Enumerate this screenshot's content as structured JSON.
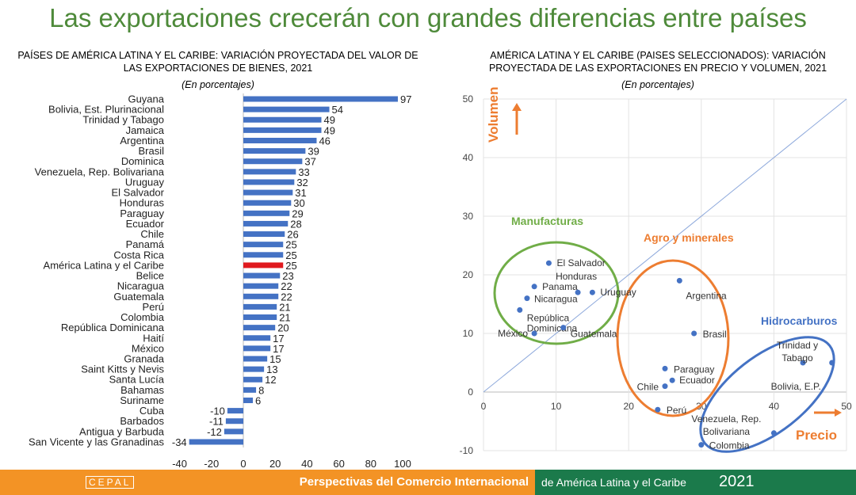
{
  "title": "Las exportaciones crecerán con grandes diferencias entre países",
  "footer": {
    "logo": "CEPAL",
    "text1": "Perspectivas del Comercio Internacional",
    "text2": "de América Latina y el Caribe",
    "year": "2021"
  },
  "chart_data": [
    {
      "type": "bar",
      "orientation": "horizontal",
      "title": "PAÍSES DE AMÉRICA LATINA Y EL CARIBE: VARIACIÓN PROYECTADA DEL VALOR DE LAS EXPORTACIONES DE BIENES, 2021",
      "subtitle": "(En porcentajes)",
      "categories": [
        "Guyana",
        "Bolivia, Est. Plurinacional",
        "Trinidad y Tabago",
        "Jamaica",
        "Argentina",
        "Brasil",
        "Dominica",
        "Venezuela, Rep. Bolivariana",
        "Uruguay",
        "El Salvador",
        "Honduras",
        "Paraguay",
        "Ecuador",
        "Chile",
        "Panamá",
        "Costa Rica",
        "América Latina y el Caribe",
        "Belice",
        "Nicaragua",
        "Guatemala",
        "Perú",
        "Colombia",
        "República Dominicana",
        "Haití",
        "México",
        "Granada",
        "Saint Kitts y Nevis",
        "Santa Lucía",
        "Bahamas",
        "Suriname",
        "Cuba",
        "Barbados",
        "Antigua y Barbuda",
        "San Vicente y las Granadinas"
      ],
      "values": [
        97,
        54,
        49,
        49,
        46,
        39,
        37,
        33,
        32,
        31,
        30,
        29,
        28,
        26,
        25,
        25,
        25,
        23,
        22,
        22,
        21,
        21,
        20,
        17,
        17,
        15,
        13,
        12,
        8,
        6,
        -10,
        -11,
        -12,
        -34
      ],
      "highlight": "América Latina y el Caribe",
      "colors": {
        "bar": "#4472c4",
        "highlight": "#e0191e"
      },
      "xlim": [
        -40,
        100
      ],
      "xticks": [
        -40,
        -20,
        0,
        20,
        40,
        60,
        80,
        100
      ]
    },
    {
      "type": "scatter",
      "title": "AMÉRICA LATINA Y EL CARIBE (PAISES SELECCIONADOS): VARIACIÓN PROYECTADA DE LAS EXPORTACIONES EN PRECIO Y VOLUMEN, 2021",
      "subtitle": "(En porcentajes)",
      "xlabel": "Precio",
      "ylabel": "Volumen",
      "xlim": [
        0,
        50
      ],
      "ylim": [
        -10,
        50
      ],
      "xticks": [
        0,
        10,
        20,
        30,
        40,
        50
      ],
      "yticks": [
        -10,
        0,
        10,
        20,
        30,
        40,
        50
      ],
      "grid": true,
      "points": [
        {
          "label": "El Salvador",
          "x": 9,
          "y": 22
        },
        {
          "label": "Panama",
          "x": 7,
          "y": 18
        },
        {
          "label": "Honduras",
          "x": 13,
          "y": 17
        },
        {
          "label": "Uruguay",
          "x": 15,
          "y": 17
        },
        {
          "label": "Nicaragua",
          "x": 6,
          "y": 16
        },
        {
          "label": "República Dominicana",
          "x": 5,
          "y": 14
        },
        {
          "label": "Guatemala",
          "x": 11,
          "y": 11
        },
        {
          "label": "México",
          "x": 7,
          "y": 10
        },
        {
          "label": "Argentina",
          "x": 27,
          "y": 19
        },
        {
          "label": "Brasil",
          "x": 29,
          "y": 10
        },
        {
          "label": "Paraguay",
          "x": 25,
          "y": 4
        },
        {
          "label": "Ecuador",
          "x": 26,
          "y": 2
        },
        {
          "label": "Chile",
          "x": 25,
          "y": 1
        },
        {
          "label": "Perú",
          "x": 24,
          "y": -3
        },
        {
          "label": "Colombia",
          "x": 30,
          "y": -9
        },
        {
          "label": "Venezuela, Rep. Bolivariana",
          "x": 40,
          "y": -7
        },
        {
          "label": "Trinidad y Tabago",
          "x": 44,
          "y": 5
        },
        {
          "label": "Bolivia, E.P.",
          "x": 48,
          "y": 5
        }
      ],
      "groups": [
        {
          "label": "Manufacturas",
          "color": "#70ad47"
        },
        {
          "label": "Agro y minerales",
          "color": "#ed7d31"
        },
        {
          "label": "Hidrocarburos",
          "color": "#4472c4"
        }
      ],
      "colors": {
        "point": "#4472c4",
        "axis_labels": "#ed7d31"
      }
    }
  ]
}
